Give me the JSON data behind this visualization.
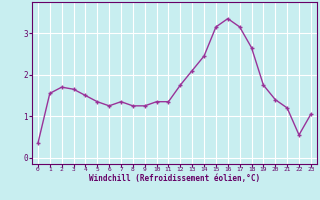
{
  "x": [
    0,
    1,
    2,
    3,
    4,
    5,
    6,
    7,
    8,
    9,
    10,
    11,
    12,
    13,
    14,
    15,
    16,
    17,
    18,
    19,
    20,
    21,
    22,
    23
  ],
  "y": [
    0.35,
    1.55,
    1.7,
    1.65,
    1.5,
    1.35,
    1.25,
    1.35,
    1.25,
    1.25,
    1.35,
    1.35,
    1.75,
    2.1,
    2.45,
    3.15,
    3.35,
    3.15,
    2.65,
    1.75,
    1.4,
    1.2,
    0.55,
    1.05
  ],
  "line_color": "#993399",
  "marker": "+",
  "marker_size": 3,
  "bg_color": "#c8eef0",
  "grid_color": "#ffffff",
  "xlabel": "Windchill (Refroidissement éolien,°C)",
  "xlabel_color": "#660066",
  "tick_color": "#660066",
  "xlim": [
    -0.5,
    23.5
  ],
  "ylim": [
    -0.15,
    3.75
  ],
  "yticks": [
    0,
    1,
    2,
    3
  ],
  "xticks": [
    0,
    1,
    2,
    3,
    4,
    5,
    6,
    7,
    8,
    9,
    10,
    11,
    12,
    13,
    14,
    15,
    16,
    17,
    18,
    19,
    20,
    21,
    22,
    23
  ]
}
